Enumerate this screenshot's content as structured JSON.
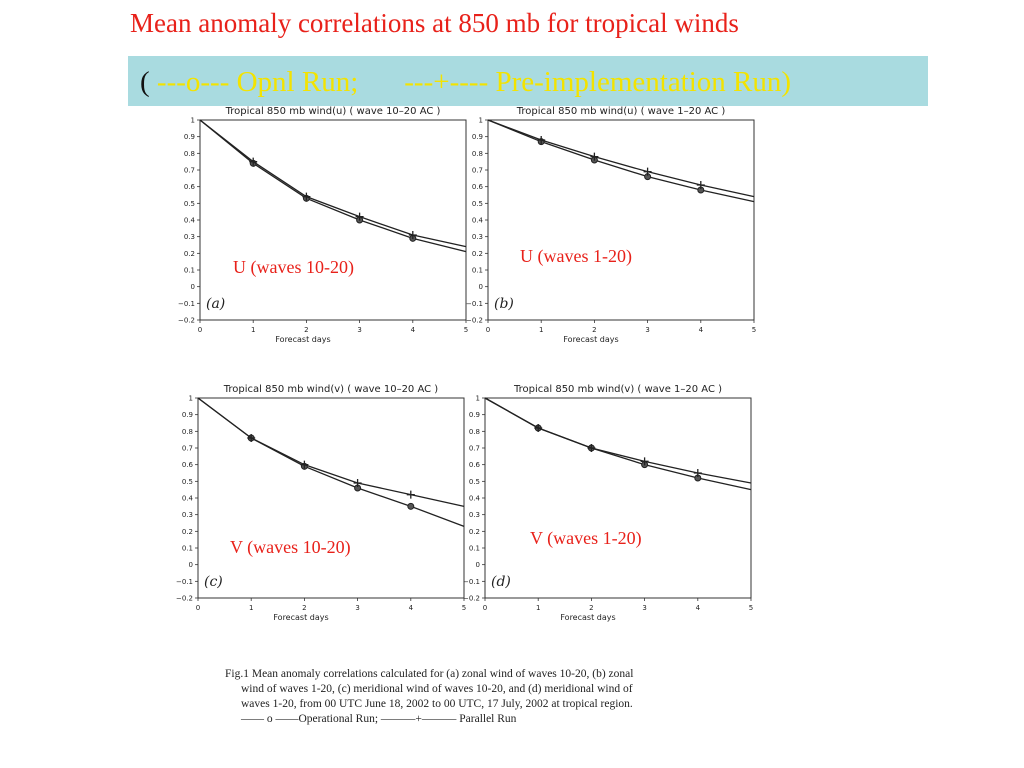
{
  "slide": {
    "title": "Mean anomaly correlations at 850 mb for tropical winds",
    "legend": {
      "open_paren": "(",
      "opnl": "---o--- Opnl Run;",
      "pre": "---+---- Pre-implementation Run)"
    }
  },
  "panels": [
    {
      "label": "U  (waves 10-20)"
    },
    {
      "label": "U  (waves 1-20)"
    },
    {
      "label": "V (waves 10-20)"
    },
    {
      "label": "V (waves 1-20)"
    }
  ],
  "chart_data": [
    {
      "type": "line",
      "title": "Tropical 850 mb wind(u) ( wave 10–20 AC )",
      "xlabel": "Forecast days",
      "ylabel": "",
      "panel_label": "(a)",
      "x_ticks": [
        0,
        1,
        2,
        3,
        4,
        5
      ],
      "y_ticks": [
        "1",
        "0.9",
        "0.8",
        "0.7",
        "0.6",
        "0.5",
        "0.4",
        "0.3",
        "0.2",
        "0.1",
        "0",
        "−0.1",
        "−0.2"
      ],
      "xlim": [
        0,
        5
      ],
      "ylim": [
        -0.2,
        1.0
      ],
      "series": [
        {
          "name": "Operational Run",
          "marker": "o",
          "x": [
            0,
            1,
            2,
            3,
            4,
            5
          ],
          "y": [
            1.0,
            0.74,
            0.53,
            0.4,
            0.29,
            0.21
          ]
        },
        {
          "name": "Parallel Run",
          "marker": "+",
          "x": [
            0,
            1,
            2,
            3,
            4,
            5
          ],
          "y": [
            1.0,
            0.75,
            0.54,
            0.42,
            0.31,
            0.24
          ]
        }
      ]
    },
    {
      "type": "line",
      "title": "Tropical 850 mb wind(u) ( wave 1–20 AC )",
      "xlabel": "Forecast days",
      "ylabel": "",
      "panel_label": "(b)",
      "x_ticks": [
        0,
        1,
        2,
        3,
        4,
        5
      ],
      "y_ticks": [
        "1",
        "0.9",
        "0.8",
        "0.7",
        "0.6",
        "0.5",
        "0.4",
        "0.3",
        "0.2",
        "0.1",
        "0",
        "−0.1",
        "−0.2"
      ],
      "xlim": [
        0,
        5
      ],
      "ylim": [
        -0.2,
        1.0
      ],
      "series": [
        {
          "name": "Operational Run",
          "marker": "o",
          "x": [
            0,
            1,
            2,
            3,
            4,
            5
          ],
          "y": [
            1.0,
            0.87,
            0.76,
            0.66,
            0.58,
            0.51
          ]
        },
        {
          "name": "Parallel Run",
          "marker": "+",
          "x": [
            0,
            1,
            2,
            3,
            4,
            5
          ],
          "y": [
            1.0,
            0.88,
            0.78,
            0.69,
            0.61,
            0.54
          ]
        }
      ]
    },
    {
      "type": "line",
      "title": "Tropical 850 mb wind(v) ( wave 10–20 AC )",
      "xlabel": "Forecast days",
      "ylabel": "",
      "panel_label": "(c)",
      "x_ticks": [
        0,
        1,
        2,
        3,
        4,
        5
      ],
      "y_ticks": [
        "1",
        "0.9",
        "0.8",
        "0.7",
        "0.6",
        "0.5",
        "0.4",
        "0.3",
        "0.2",
        "0.1",
        "0",
        "−0.1",
        "−0.2"
      ],
      "xlim": [
        0,
        5
      ],
      "ylim": [
        -0.2,
        1.0
      ],
      "series": [
        {
          "name": "Operational Run",
          "marker": "o",
          "x": [
            0,
            1,
            2,
            3,
            4,
            5
          ],
          "y": [
            1.0,
            0.76,
            0.59,
            0.46,
            0.35,
            0.23
          ]
        },
        {
          "name": "Parallel Run",
          "marker": "+",
          "x": [
            0,
            1,
            2,
            3,
            4,
            5
          ],
          "y": [
            1.0,
            0.76,
            0.6,
            0.49,
            0.42,
            0.35
          ]
        }
      ]
    },
    {
      "type": "line",
      "title": "Tropical 850 mb wind(v) ( wave 1–20 AC )",
      "xlabel": "Forecast days",
      "ylabel": "",
      "panel_label": "(d)",
      "x_ticks": [
        0,
        1,
        2,
        3,
        4,
        5
      ],
      "y_ticks": [
        "1",
        "0.9",
        "0.8",
        "0.7",
        "0.6",
        "0.5",
        "0.4",
        "0.3",
        "0.2",
        "0.1",
        "0",
        "−0.1",
        "−0.2"
      ],
      "xlim": [
        0,
        5
      ],
      "ylim": [
        -0.2,
        1.0
      ],
      "series": [
        {
          "name": "Operational Run",
          "marker": "o",
          "x": [
            0,
            1,
            2,
            3,
            4,
            5
          ],
          "y": [
            1.0,
            0.82,
            0.7,
            0.6,
            0.52,
            0.45
          ]
        },
        {
          "name": "Parallel Run",
          "marker": "+",
          "x": [
            0,
            1,
            2,
            3,
            4,
            5
          ],
          "y": [
            1.0,
            0.82,
            0.7,
            0.62,
            0.55,
            0.49
          ]
        }
      ]
    }
  ],
  "caption": {
    "first": "Fig.1  Mean anomaly correlations calculated for (a) zonal wind of waves 10-20, (b) zonal",
    "line2": "wind of waves 1-20, (c) meridional wind of waves 10-20, and (d) meridional wind of",
    "line3": "waves 1-20, from 00 UTC June 18, 2002 to 00 UTC, 17 July, 2002 at tropical region.",
    "line4": "—— o ——Operational Run;   ———+———  Parallel Run"
  }
}
